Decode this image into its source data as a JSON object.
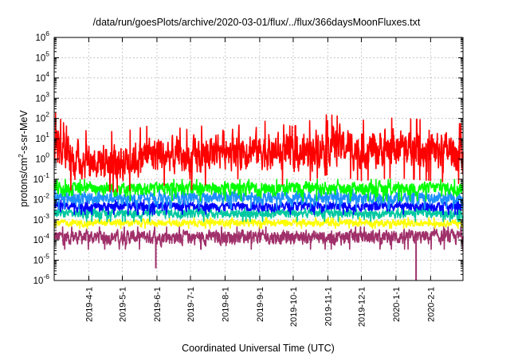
{
  "chart_data": {
    "type": "line",
    "title": "/data/run/goesPlots/archive/2020-03-01/flux/../flux/366daysMoonFluxes.txt",
    "xlabel": "Coordinated Universal Time (UTC)",
    "ylabel": {
      "prefix": "protons/cm",
      "superscript": "2",
      "suffix": "-s-sr-MeV"
    },
    "yscale": "log",
    "ylim": [
      1e-06,
      1000000.0
    ],
    "xlim": [
      "2019-03-01",
      "2020-03-01"
    ],
    "grid": true,
    "y_ticks": [
      {
        "base": "10",
        "exp": "-6",
        "value": 1e-06
      },
      {
        "base": "10",
        "exp": "-5",
        "value": 1e-05
      },
      {
        "base": "10",
        "exp": "-4",
        "value": 0.0001
      },
      {
        "base": "10",
        "exp": "-3",
        "value": 0.001
      },
      {
        "base": "10",
        "exp": "-2",
        "value": 0.01
      },
      {
        "base": "10",
        "exp": "-1",
        "value": 0.1
      },
      {
        "base": "10",
        "exp": "0",
        "value": 1
      },
      {
        "base": "10",
        "exp": "1",
        "value": 10
      },
      {
        "base": "10",
        "exp": "2",
        "value": 100
      },
      {
        "base": "10",
        "exp": "3",
        "value": 1000
      },
      {
        "base": "10",
        "exp": "4",
        "value": 10000
      },
      {
        "base": "10",
        "exp": "5",
        "value": 100000
      },
      {
        "base": "10",
        "exp": "6",
        "value": 1000000
      }
    ],
    "x_ticks": [
      {
        "label": "2019-4-1",
        "date": "2019-04-01"
      },
      {
        "label": "2019-5-1",
        "date": "2019-05-01"
      },
      {
        "label": "2019-6-1",
        "date": "2019-06-01"
      },
      {
        "label": "2019-7-1",
        "date": "2019-07-01"
      },
      {
        "label": "2019-8-1",
        "date": "2019-08-01"
      },
      {
        "label": "2019-9-1",
        "date": "2019-09-01"
      },
      {
        "label": "2019-10-1",
        "date": "2019-10-01"
      },
      {
        "label": "2019-11-1",
        "date": "2019-11-01"
      },
      {
        "label": "2019-12-1",
        "date": "2019-12-01"
      },
      {
        "label": "2020-1-1",
        "date": "2020-01-01"
      },
      {
        "label": "2020-2-1",
        "date": "2020-02-01"
      }
    ],
    "series": [
      {
        "color": "#ff0000",
        "median": 2.0,
        "min_typical": 0.08,
        "max_typical": 40,
        "profile": [
          {
            "date": "2019-03-01",
            "median": 8.0
          },
          {
            "date": "2019-03-15",
            "median": 1.0
          },
          {
            "date": "2019-05-01",
            "median": 0.8
          },
          {
            "date": "2019-06-01",
            "median": 2.0
          },
          {
            "date": "2019-07-01",
            "median": 1.0
          },
          {
            "date": "2019-08-01",
            "median": 4.0
          },
          {
            "date": "2019-09-01",
            "median": 3.0
          },
          {
            "date": "2019-10-01",
            "median": 1.5
          },
          {
            "date": "2019-11-01",
            "median": 6.0
          },
          {
            "date": "2019-12-01",
            "median": 3.0
          },
          {
            "date": "2020-01-01",
            "median": 4.0
          },
          {
            "date": "2020-02-01",
            "median": 3.0
          },
          {
            "date": "2020-03-01",
            "median": 2.0
          }
        ]
      },
      {
        "color": "#00ff00",
        "median": 0.04,
        "min_typical": 0.01,
        "max_typical": 0.09
      },
      {
        "color": "#1e90ff",
        "median": 0.012,
        "min_typical": 0.004,
        "max_typical": 0.03
      },
      {
        "color": "#0000ff",
        "median": 0.005,
        "min_typical": 0.002,
        "max_typical": 0.009
      },
      {
        "color": "#00c8a0",
        "median": 0.0022,
        "min_typical": 0.0009,
        "max_typical": 0.004
      },
      {
        "color": "#ffff00",
        "median": 0.0007,
        "min_typical": 0.0004,
        "max_typical": 0.0012
      },
      {
        "color": "#a0306a",
        "median": 0.00015,
        "min_typical": 4e-05,
        "max_typical": 0.0004,
        "dips": [
          {
            "date": "2019-05-31",
            "value": 4e-06
          },
          {
            "date": "2020-01-19",
            "value": 1e-06
          }
        ]
      }
    ]
  }
}
